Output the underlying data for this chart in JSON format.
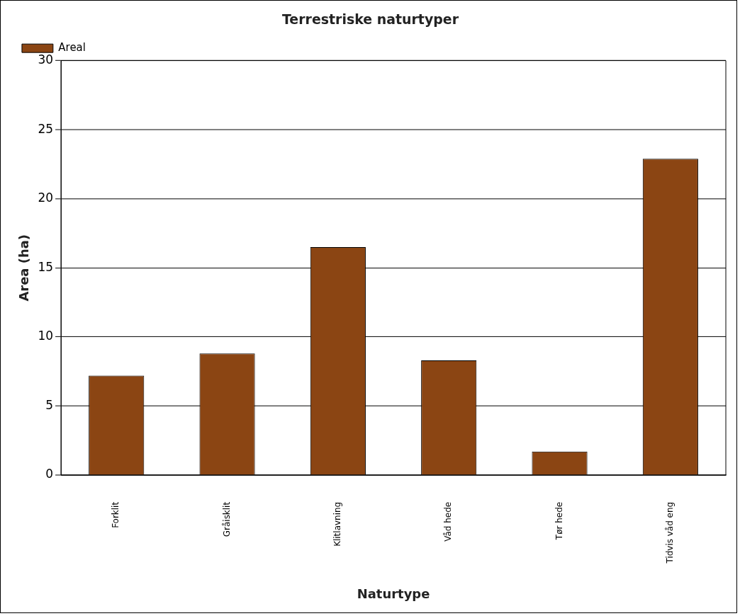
{
  "chart_data": {
    "type": "bar",
    "title": "Terrestriske naturtyper",
    "xlabel": "Naturtype",
    "ylabel": "Area (ha)",
    "categories": [
      "Forklit",
      "Gråisklit",
      "Klitlavning",
      "Våd hede",
      "Tør hede",
      "Tidvis våd eng"
    ],
    "series": [
      {
        "name": "Areal",
        "color": "#8b4513",
        "values": [
          7.2,
          8.8,
          16.5,
          8.3,
          1.7,
          22.9
        ]
      }
    ],
    "ylim": [
      0,
      30
    ],
    "yticks": [
      0,
      5,
      10,
      15,
      20,
      25,
      30
    ],
    "grid": "y",
    "legend": "top left"
  }
}
